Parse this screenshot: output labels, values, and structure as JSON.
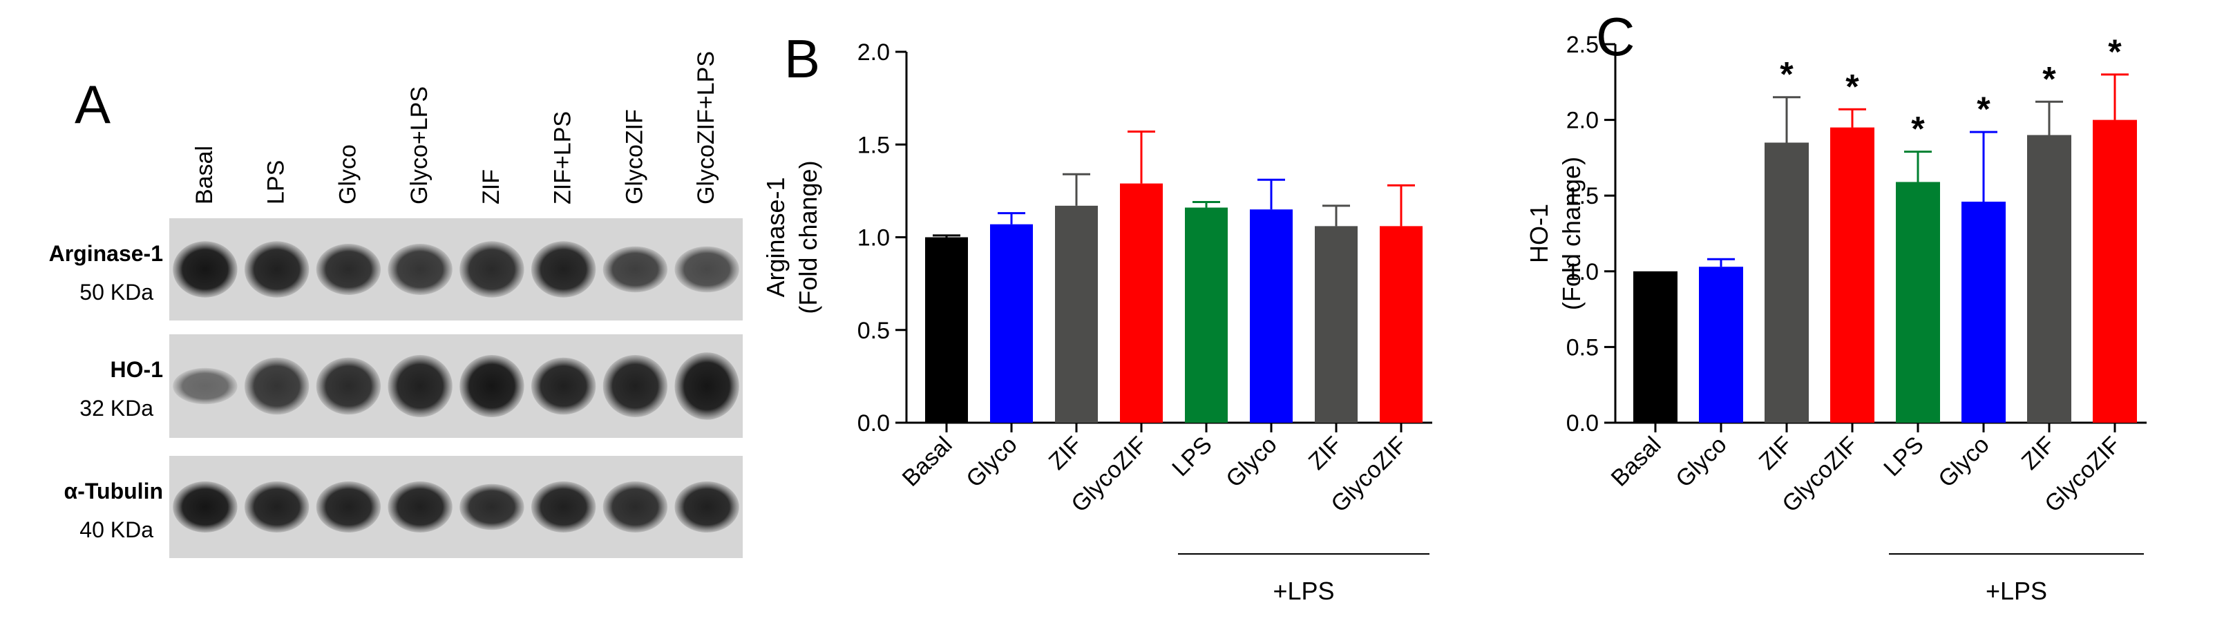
{
  "panel_a": {
    "label": "A",
    "lanes": [
      "Basal",
      "LPS",
      "Glyco",
      "Glyco+LPS",
      "ZIF",
      "ZIF+LPS",
      "GlycoZIF",
      "GlycoZIF+LPS"
    ],
    "blots": [
      {
        "name": "Arginase-1",
        "size": "50 KDa",
        "intensity": [
          0.95,
          0.9,
          0.85,
          0.8,
          0.85,
          0.9,
          0.75,
          0.7
        ],
        "band_height": [
          0.55,
          0.55,
          0.5,
          0.5,
          0.55,
          0.55,
          0.45,
          0.45
        ]
      },
      {
        "name": "HO-1",
        "size": "32 KDa",
        "intensity": [
          0.55,
          0.8,
          0.85,
          0.9,
          0.95,
          0.9,
          0.9,
          0.95
        ],
        "band_height": [
          0.35,
          0.55,
          0.55,
          0.6,
          0.6,
          0.55,
          0.6,
          0.65
        ]
      },
      {
        "name": "α-Tubulin",
        "size": "40 KDa",
        "intensity": [
          0.95,
          0.9,
          0.9,
          0.9,
          0.85,
          0.9,
          0.85,
          0.9
        ],
        "band_height": [
          0.5,
          0.5,
          0.5,
          0.5,
          0.45,
          0.5,
          0.5,
          0.5
        ]
      }
    ]
  },
  "chart_data": [
    {
      "panel": "B",
      "type": "bar",
      "categories": [
        "Basal",
        "Glyco",
        "ZIF",
        "GlycoZIF",
        "LPS",
        "Glyco",
        "ZIF",
        "GlycoZIF"
      ],
      "values": [
        1.0,
        1.07,
        1.17,
        1.29,
        1.16,
        1.15,
        1.06,
        1.06
      ],
      "errors": [
        0.01,
        0.06,
        0.17,
        0.28,
        0.03,
        0.16,
        0.11,
        0.22
      ],
      "colors": [
        "#000000",
        "#0000ff",
        "#4d4d4b",
        "#ff0000",
        "#008030",
        "#0000ff",
        "#4d4d4b",
        "#ff0000"
      ],
      "significance": [
        "",
        "",
        "",
        "",
        "",
        "",
        "",
        ""
      ],
      "ylabel": [
        "Arginase-1",
        "(Fold change)"
      ],
      "ylim": [
        0,
        2.0
      ],
      "yticks": [
        "0.0",
        "0.5",
        "1.0",
        "1.5",
        "2.0"
      ],
      "group_label": "+LPS",
      "group_start": 4,
      "group_end": 7
    },
    {
      "panel": "C",
      "type": "bar",
      "categories": [
        "Basal",
        "Glyco",
        "ZIF",
        "GlycoZIF",
        "LPS",
        "Glyco",
        "ZIF",
        "GlycoZIF"
      ],
      "values": [
        1.0,
        1.03,
        1.85,
        1.95,
        1.59,
        1.46,
        1.9,
        2.0
      ],
      "errors": [
        0.0,
        0.05,
        0.3,
        0.12,
        0.2,
        0.46,
        0.22,
        0.3
      ],
      "colors": [
        "#000000",
        "#0000ff",
        "#4d4d4b",
        "#ff0000",
        "#008030",
        "#0000ff",
        "#4d4d4b",
        "#ff0000"
      ],
      "significance": [
        "",
        "",
        "*",
        "*",
        "*",
        "*",
        "*",
        "*"
      ],
      "ylabel": [
        "HO-1",
        "(Fold change)"
      ],
      "ylim": [
        0,
        2.5
      ],
      "yticks": [
        "0.0",
        "0.5",
        "1.0",
        "1.5",
        "2.0",
        "2.5"
      ],
      "group_label": "+LPS",
      "group_start": 4,
      "group_end": 7
    }
  ]
}
